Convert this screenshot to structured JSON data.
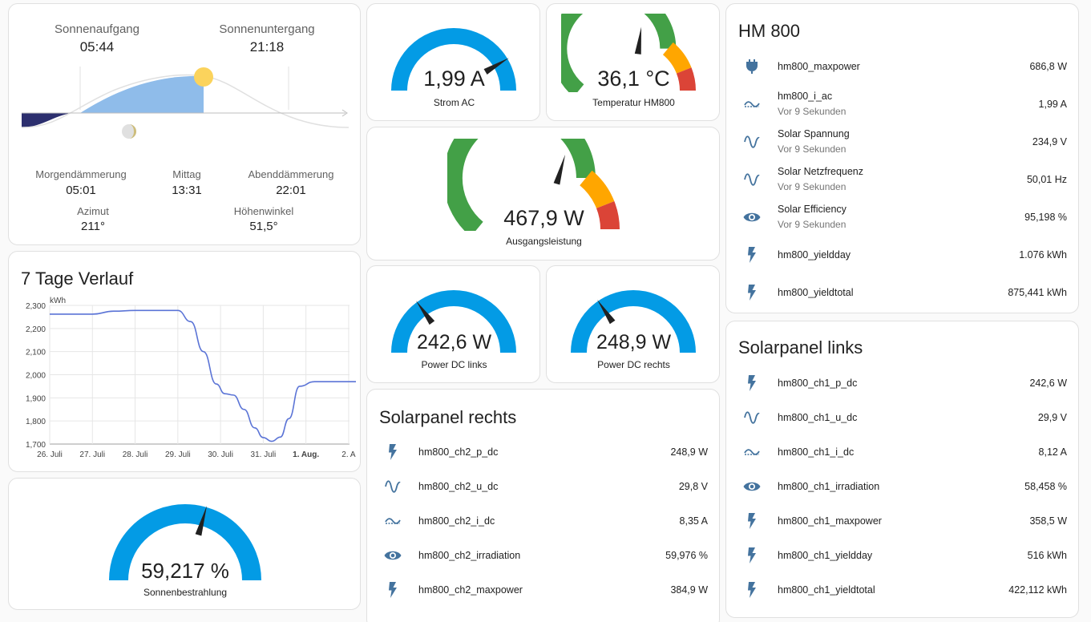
{
  "sun": {
    "sunrise_label": "Sonnenaufgang",
    "sunrise_time": "05:44",
    "sunset_label": "Sonnenuntergang",
    "sunset_time": "21:18",
    "dawn_label": "Morgendämmerung",
    "dawn_time": "05:01",
    "noon_label": "Mittag",
    "noon_time": "13:31",
    "dusk_label": "Abenddämmerung",
    "dusk_time": "22:01",
    "azimuth_label": "Azimut",
    "azimuth_value": "211°",
    "elevation_label": "Höhenwinkel",
    "elevation_value": "51,5°",
    "colors": {
      "day": "#8fbcea",
      "night": "#2c2f6e",
      "sun": "#fbd35c"
    }
  },
  "history": {
    "title": "7 Tage Verlauf",
    "unit": "kWh"
  },
  "chart_data": {
    "type": "line",
    "title": "7 Tage Verlauf",
    "ylabel": "kWh",
    "ylim": [
      1700,
      2300
    ],
    "yticks": [
      "2,300",
      "2,200",
      "2,100",
      "2,000",
      "1,900",
      "1,800",
      "1,700"
    ],
    "x_tick_labels": [
      "26. Juli",
      "27. Juli",
      "28. Juli",
      "29. Juli",
      "30. Juli",
      "31. Juli",
      "1. Aug.",
      "2. A"
    ],
    "series": [
      {
        "color": "#5b74d6",
        "x": [
          0,
          1.0,
          1.5,
          2.0,
          2.5,
          3.0,
          3.3,
          3.6,
          3.9,
          4.1,
          4.3,
          4.55,
          4.8,
          5.0,
          5.2,
          5.4,
          5.6,
          5.85,
          6.2,
          7.0,
          7.6
        ],
        "values": [
          2262,
          2262,
          2275,
          2278,
          2278,
          2278,
          2230,
          2100,
          1960,
          1918,
          1912,
          1850,
          1770,
          1728,
          1712,
          1730,
          1810,
          1950,
          1970,
          1970,
          1970
        ]
      }
    ]
  },
  "gauges": {
    "strom_ac": {
      "value": "1,99 A",
      "name": "Strom AC",
      "fraction": 0.83
    },
    "temp": {
      "value": "36,1 °C",
      "name": "Temperatur HM800",
      "fraction": 0.54
    },
    "output": {
      "value": "467,9 W",
      "name": "Ausgangsleistung",
      "fraction": 0.59
    },
    "dc_links": {
      "value": "242,6 W",
      "name": "Power DC links",
      "fraction": 0.3
    },
    "dc_rechts": {
      "value": "248,9 W",
      "name": "Power DC rechts",
      "fraction": 0.31
    },
    "irradiation": {
      "value": "59,217 %",
      "name": "Sonnenbestrahlung",
      "fraction": 0.59
    }
  },
  "colors": {
    "gauge_blue": "#039be5",
    "gauge_green": "#43a047",
    "gauge_orange": "#ffa600",
    "gauge_red": "#db4437",
    "icon": "#44739e"
  },
  "hm800": {
    "title": "HM 800",
    "rows": [
      {
        "icon": "plug-icon",
        "name": "hm800_maxpower",
        "sub": "",
        "value": "686,8 W"
      },
      {
        "icon": "current-ac-icon",
        "name": "hm800_i_ac",
        "sub": "Vor 9 Sekunden",
        "value": "1,99 A"
      },
      {
        "icon": "sine-wave-icon",
        "name": "Solar Spannung",
        "sub": "Vor 9 Sekunden",
        "value": "234,9 V"
      },
      {
        "icon": "sine-wave-icon",
        "name": "Solar Netzfrequenz",
        "sub": "Vor 9 Sekunden",
        "value": "50,01 Hz"
      },
      {
        "icon": "eye-icon",
        "name": "Solar Efficiency",
        "sub": "Vor 9 Sekunden",
        "value": "95,198 %"
      },
      {
        "icon": "flash-icon",
        "name": "hm800_yieldday",
        "sub": "",
        "value": "1.076 kWh"
      },
      {
        "icon": "flash-icon",
        "name": "hm800_yieldtotal",
        "sub": "",
        "value": "875,441 kWh"
      }
    ]
  },
  "panel_links": {
    "title": "Solarpanel links",
    "rows": [
      {
        "icon": "flash-icon",
        "name": "hm800_ch1_p_dc",
        "value": "242,6 W"
      },
      {
        "icon": "sine-wave-icon",
        "name": "hm800_ch1_u_dc",
        "value": "29,9 V"
      },
      {
        "icon": "current-ac-icon",
        "name": "hm800_ch1_i_dc",
        "value": "8,12 A"
      },
      {
        "icon": "eye-icon",
        "name": "hm800_ch1_irradiation",
        "value": "58,458 %"
      },
      {
        "icon": "flash-icon",
        "name": "hm800_ch1_maxpower",
        "value": "358,5 W"
      },
      {
        "icon": "flash-icon",
        "name": "hm800_ch1_yieldday",
        "value": "516 kWh"
      },
      {
        "icon": "flash-icon",
        "name": "hm800_ch1_yieldtotal",
        "value": "422,112 kWh"
      }
    ]
  },
  "panel_rechts": {
    "title": "Solarpanel rechts",
    "rows": [
      {
        "icon": "flash-icon",
        "name": "hm800_ch2_p_dc",
        "value": "248,9 W"
      },
      {
        "icon": "sine-wave-icon",
        "name": "hm800_ch2_u_dc",
        "value": "29,8 V"
      },
      {
        "icon": "current-ac-icon",
        "name": "hm800_ch2_i_dc",
        "value": "8,35 A"
      },
      {
        "icon": "eye-icon",
        "name": "hm800_ch2_irradiation",
        "value": "59,976 %"
      },
      {
        "icon": "flash-icon",
        "name": "hm800_ch2_maxpower",
        "value": "384,9 W"
      }
    ]
  }
}
